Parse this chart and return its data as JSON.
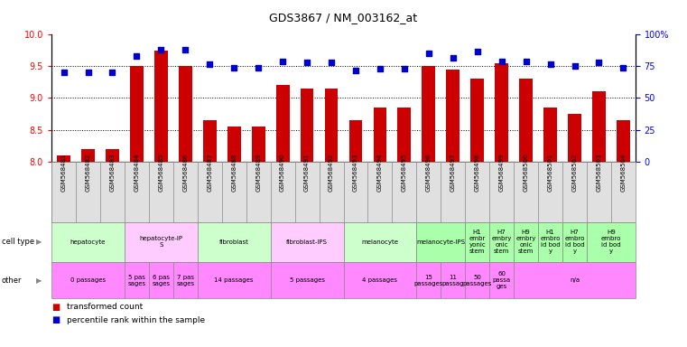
{
  "title": "GDS3867 / NM_003162_at",
  "samples": [
    "GSM568481",
    "GSM568482",
    "GSM568483",
    "GSM568484",
    "GSM568485",
    "GSM568486",
    "GSM568487",
    "GSM568488",
    "GSM568489",
    "GSM568490",
    "GSM568491",
    "GSM568492",
    "GSM568493",
    "GSM568494",
    "GSM568495",
    "GSM568496",
    "GSM568497",
    "GSM568498",
    "GSM568499",
    "GSM568500",
    "GSM568501",
    "GSM568502",
    "GSM568503",
    "GSM568504"
  ],
  "bar_values": [
    8.1,
    8.2,
    8.2,
    9.5,
    9.75,
    9.5,
    8.65,
    8.55,
    8.55,
    9.2,
    9.15,
    9.15,
    8.65,
    8.85,
    8.85,
    9.5,
    9.45,
    9.3,
    9.55,
    9.3,
    8.85,
    8.75,
    9.1,
    8.65
  ],
  "percentile_values": [
    70,
    70,
    70,
    83,
    88,
    88,
    77,
    74,
    74,
    79,
    78,
    78,
    72,
    73,
    73,
    85,
    82,
    87,
    79,
    79,
    77,
    75,
    78,
    74
  ],
  "ylim_left": [
    8.0,
    10.0
  ],
  "ylim_right": [
    0,
    100
  ],
  "yticks_left": [
    8.0,
    8.5,
    9.0,
    9.5,
    10.0
  ],
  "yticks_right": [
    0,
    25,
    50,
    75,
    100
  ],
  "bar_color": "#cc0000",
  "dot_color": "#0000cc",
  "cell_type_groups": [
    {
      "label": "hepatocyte",
      "start": 0,
      "end": 3,
      "color": "#ccffcc"
    },
    {
      "label": "hepatocyte-iP\nS",
      "start": 3,
      "end": 6,
      "color": "#ffccff"
    },
    {
      "label": "fibroblast",
      "start": 6,
      "end": 9,
      "color": "#ccffcc"
    },
    {
      "label": "fibroblast-IPS",
      "start": 9,
      "end": 12,
      "color": "#ffccff"
    },
    {
      "label": "melanocyte",
      "start": 12,
      "end": 15,
      "color": "#ccffcc"
    },
    {
      "label": "melanocyte-IPS",
      "start": 15,
      "end": 17,
      "color": "#aaffaa"
    },
    {
      "label": "H1\nembr\nyonic\nstem",
      "start": 17,
      "end": 18,
      "color": "#aaffaa"
    },
    {
      "label": "H7\nembry\nonic\nstem",
      "start": 18,
      "end": 19,
      "color": "#aaffaa"
    },
    {
      "label": "H9\nembry\nonic\nstem",
      "start": 19,
      "end": 20,
      "color": "#aaffaa"
    },
    {
      "label": "H1\nembro\nid bod\ny",
      "start": 20,
      "end": 21,
      "color": "#aaffaa"
    },
    {
      "label": "H7\nembro\nid bod\ny",
      "start": 21,
      "end": 22,
      "color": "#aaffaa"
    },
    {
      "label": "H9\nembro\nid bod\ny",
      "start": 22,
      "end": 24,
      "color": "#aaffaa"
    }
  ],
  "other_groups": [
    {
      "label": "0 passages",
      "start": 0,
      "end": 3,
      "color": "#ff88ff"
    },
    {
      "label": "5 pas\nsages",
      "start": 3,
      "end": 4,
      "color": "#ff88ff"
    },
    {
      "label": "6 pas\nsages",
      "start": 4,
      "end": 5,
      "color": "#ff88ff"
    },
    {
      "label": "7 pas\nsages",
      "start": 5,
      "end": 6,
      "color": "#ff88ff"
    },
    {
      "label": "14 passages",
      "start": 6,
      "end": 9,
      "color": "#ff88ff"
    },
    {
      "label": "5 passages",
      "start": 9,
      "end": 12,
      "color": "#ff88ff"
    },
    {
      "label": "4 passages",
      "start": 12,
      "end": 15,
      "color": "#ff88ff"
    },
    {
      "label": "15\npassages",
      "start": 15,
      "end": 16,
      "color": "#ff88ff"
    },
    {
      "label": "11\npassag",
      "start": 16,
      "end": 17,
      "color": "#ff88ff"
    },
    {
      "label": "50\npassages",
      "start": 17,
      "end": 18,
      "color": "#ff88ff"
    },
    {
      "label": "60\npassa\nges",
      "start": 18,
      "end": 19,
      "color": "#ff88ff"
    },
    {
      "label": "n/a",
      "start": 19,
      "end": 24,
      "color": "#ff88ff"
    }
  ]
}
